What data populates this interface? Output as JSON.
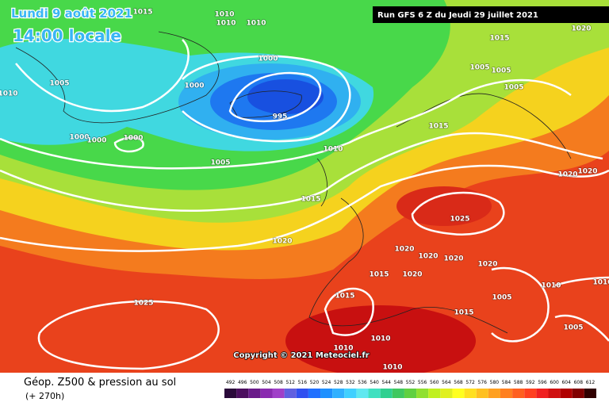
{
  "header": {
    "date": "Lundi 9 août 2021",
    "time": "14:00 locale",
    "run": "Run GFS 6 Z du Jeudi 29 juillet 2021"
  },
  "isobar_labels": [
    1015,
    1010,
    1010,
    1010,
    1015,
    1020,
    1000,
    1005,
    1010,
    1000,
    1005,
    1005,
    1005,
    995,
    1000,
    1000,
    1000,
    1015,
    1010,
    1005,
    1020,
    1020,
    1015,
    1025,
    1020,
    1020,
    1020,
    1020,
    1020,
    1015,
    1020,
    1010,
    1010,
    1015,
    1005,
    1025,
    1015,
    1005,
    1010,
    1010,
    1010
  ],
  "copyright": "Copyright © 2021 Meteociel.fr",
  "footer": {
    "title": "Géop. Z500 & pression au sol",
    "subtitle": "(+ 270h)"
  },
  "scale": {
    "values": [
      492,
      496,
      500,
      504,
      508,
      512,
      516,
      520,
      524,
      528,
      532,
      536,
      540,
      544,
      548,
      552,
      556,
      560,
      564,
      568,
      572,
      576,
      580,
      584,
      588,
      592,
      596,
      600,
      604,
      608,
      612
    ],
    "colors": [
      "#2a0a3a",
      "#4b0e5e",
      "#6a1b8a",
      "#8a2bb0",
      "#a040c8",
      "#6060e0",
      "#3050f0",
      "#2070ff",
      "#1e90ff",
      "#30b0ff",
      "#40d0ff",
      "#60e8f0",
      "#40e0c0",
      "#30d090",
      "#40c860",
      "#60d040",
      "#90e030",
      "#c0f020",
      "#e0f020",
      "#ffff20",
      "#ffe020",
      "#ffc020",
      "#ffa020",
      "#ff8020",
      "#ff6020",
      "#ff4020",
      "#f02020",
      "#d01010",
      "#b00000",
      "#800000",
      "#300000"
    ]
  }
}
